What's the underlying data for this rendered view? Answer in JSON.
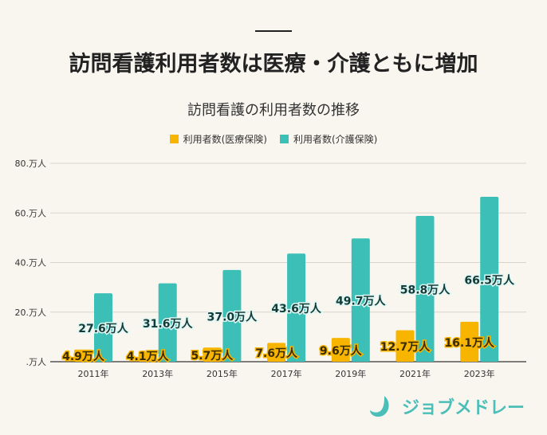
{
  "header": {
    "title": "訪問看護利用者数は医療・介護ともに増加"
  },
  "logo": {
    "text": "ジョブメドレー"
  },
  "chart_data": {
    "type": "bar",
    "title": "訪問看護の利用者数の推移",
    "categories": [
      "2011年",
      "2013年",
      "2015年",
      "2017年",
      "2019年",
      "2021年",
      "2023年"
    ],
    "series": [
      {
        "name": "利用者数(医療保険)",
        "color": "#f7b500",
        "values": [
          4.9,
          4.1,
          5.7,
          7.6,
          9.6,
          12.7,
          16.1
        ],
        "labels": [
          "4.9万人",
          "4.1万人",
          "5.7万人",
          "7.6万人",
          "9.6万人",
          "12.7万人",
          "16.1万人"
        ]
      },
      {
        "name": "利用者数(介護保険)",
        "color": "#3bbfb7",
        "values": [
          27.6,
          31.6,
          37.0,
          43.6,
          49.7,
          58.8,
          66.5
        ],
        "labels": [
          "27.6万人",
          "31.6万人",
          "37.0万人",
          "43.6万人",
          "49.7万人",
          "58.8万人",
          "66.5万人"
        ]
      }
    ],
    "yticks": [
      0,
      20,
      40,
      60,
      80
    ],
    "ytick_labels": [
      ".万人",
      "20.万人",
      "40.万人",
      "60.万人",
      "80.万人"
    ],
    "ylim": [
      0,
      80
    ],
    "unit": "万人",
    "grid": true,
    "legend": "top-center"
  }
}
